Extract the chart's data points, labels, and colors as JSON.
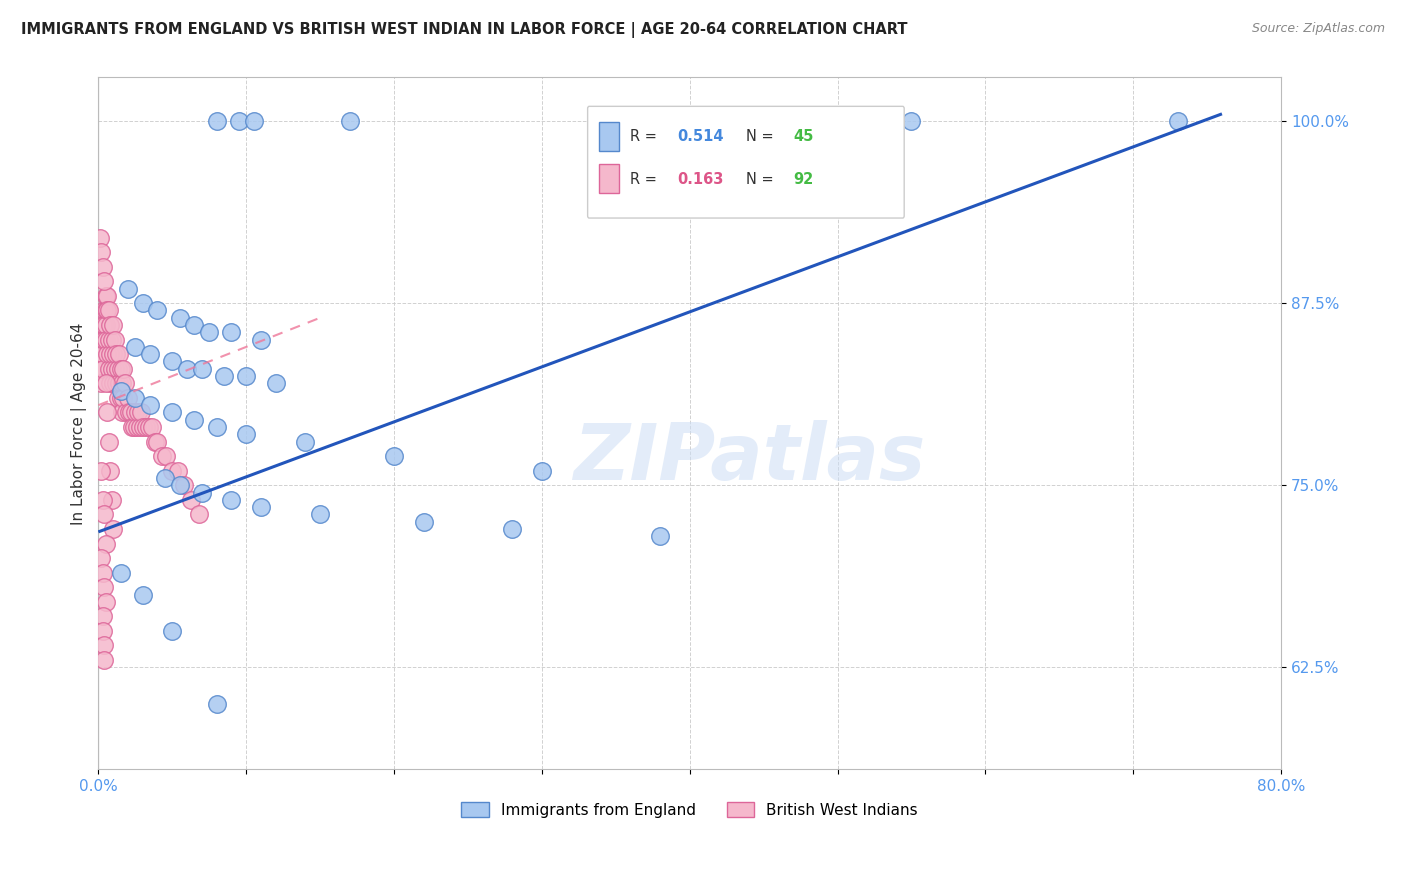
{
  "title": "IMMIGRANTS FROM ENGLAND VS BRITISH WEST INDIAN IN LABOR FORCE | AGE 20-64 CORRELATION CHART",
  "source_text": "Source: ZipAtlas.com",
  "ylabel": "In Labor Force | Age 20-64",
  "xlim": [
    0.0,
    0.8
  ],
  "ylim": [
    0.555,
    1.03
  ],
  "yticks": [
    0.625,
    0.75,
    0.875,
    1.0
  ],
  "ytick_labels": [
    "62.5%",
    "75.0%",
    "87.5%",
    "100.0%"
  ],
  "xticks": [
    0.0,
    0.1,
    0.2,
    0.3,
    0.4,
    0.5,
    0.6,
    0.7,
    0.8
  ],
  "xtick_labels": [
    "0.0%",
    "",
    "",
    "",
    "",
    "",
    "",
    "",
    "80.0%"
  ],
  "england_color": "#a8c8f0",
  "england_edge_color": "#5588cc",
  "bwi_color": "#f5b8cc",
  "bwi_edge_color": "#dd6699",
  "england_R": 0.514,
  "england_N": 45,
  "bwi_R": 0.163,
  "bwi_N": 92,
  "england_line_color": "#2255bb",
  "bwi_line_color": "#ee7799",
  "legend_R_color_eng": "#4488dd",
  "legend_R_color_bwi": "#dd5588",
  "legend_N_color_eng": "#44bb44",
  "legend_N_color_bwi": "#44bb44",
  "eng_line_x0": 0.0,
  "eng_line_y0": 0.718,
  "eng_line_x1": 0.76,
  "eng_line_y1": 1.005,
  "bwi_line_x0": 0.0,
  "bwi_line_y0": 0.805,
  "bwi_line_x1": 0.15,
  "bwi_line_y1": 0.865,
  "england_x": [
    0.08,
    0.095,
    0.105,
    0.17,
    0.55,
    0.73,
    0.02,
    0.03,
    0.04,
    0.055,
    0.065,
    0.075,
    0.09,
    0.11,
    0.025,
    0.035,
    0.05,
    0.06,
    0.07,
    0.085,
    0.1,
    0.12,
    0.015,
    0.025,
    0.035,
    0.05,
    0.065,
    0.08,
    0.1,
    0.14,
    0.2,
    0.3,
    0.045,
    0.055,
    0.07,
    0.09,
    0.11,
    0.15,
    0.22,
    0.28,
    0.38,
    0.015,
    0.03,
    0.05,
    0.08
  ],
  "england_y": [
    1.0,
    1.0,
    1.0,
    1.0,
    1.0,
    1.0,
    0.885,
    0.875,
    0.87,
    0.865,
    0.86,
    0.855,
    0.855,
    0.85,
    0.845,
    0.84,
    0.835,
    0.83,
    0.83,
    0.825,
    0.825,
    0.82,
    0.815,
    0.81,
    0.805,
    0.8,
    0.795,
    0.79,
    0.785,
    0.78,
    0.77,
    0.76,
    0.755,
    0.75,
    0.745,
    0.74,
    0.735,
    0.73,
    0.725,
    0.72,
    0.715,
    0.69,
    0.675,
    0.65,
    0.6
  ],
  "bwi_x": [
    0.001,
    0.001,
    0.002,
    0.002,
    0.002,
    0.002,
    0.003,
    0.003,
    0.003,
    0.003,
    0.004,
    0.004,
    0.004,
    0.005,
    0.005,
    0.005,
    0.005,
    0.006,
    0.006,
    0.006,
    0.007,
    0.007,
    0.007,
    0.008,
    0.008,
    0.008,
    0.009,
    0.009,
    0.01,
    0.01,
    0.01,
    0.011,
    0.011,
    0.012,
    0.012,
    0.013,
    0.013,
    0.014,
    0.014,
    0.015,
    0.015,
    0.016,
    0.016,
    0.017,
    0.017,
    0.018,
    0.019,
    0.02,
    0.021,
    0.022,
    0.023,
    0.024,
    0.025,
    0.026,
    0.027,
    0.028,
    0.029,
    0.03,
    0.032,
    0.034,
    0.036,
    0.038,
    0.04,
    0.043,
    0.046,
    0.05,
    0.054,
    0.058,
    0.063,
    0.068,
    0.001,
    0.002,
    0.003,
    0.004,
    0.005,
    0.006,
    0.007,
    0.008,
    0.009,
    0.01,
    0.002,
    0.003,
    0.004,
    0.005,
    0.002,
    0.003,
    0.004,
    0.005,
    0.003,
    0.003,
    0.004,
    0.004
  ],
  "bwi_y": [
    0.84,
    0.83,
    0.85,
    0.84,
    0.83,
    0.82,
    0.86,
    0.85,
    0.84,
    0.83,
    0.87,
    0.86,
    0.85,
    0.88,
    0.87,
    0.86,
    0.85,
    0.88,
    0.87,
    0.84,
    0.87,
    0.85,
    0.83,
    0.86,
    0.84,
    0.82,
    0.85,
    0.83,
    0.86,
    0.84,
    0.82,
    0.85,
    0.83,
    0.84,
    0.82,
    0.83,
    0.81,
    0.84,
    0.82,
    0.83,
    0.81,
    0.82,
    0.8,
    0.83,
    0.81,
    0.82,
    0.8,
    0.81,
    0.8,
    0.8,
    0.79,
    0.79,
    0.8,
    0.79,
    0.8,
    0.79,
    0.8,
    0.79,
    0.79,
    0.79,
    0.79,
    0.78,
    0.78,
    0.77,
    0.77,
    0.76,
    0.76,
    0.75,
    0.74,
    0.73,
    0.92,
    0.91,
    0.9,
    0.89,
    0.82,
    0.8,
    0.78,
    0.76,
    0.74,
    0.72,
    0.76,
    0.74,
    0.73,
    0.71,
    0.7,
    0.69,
    0.68,
    0.67,
    0.66,
    0.65,
    0.64,
    0.63
  ]
}
